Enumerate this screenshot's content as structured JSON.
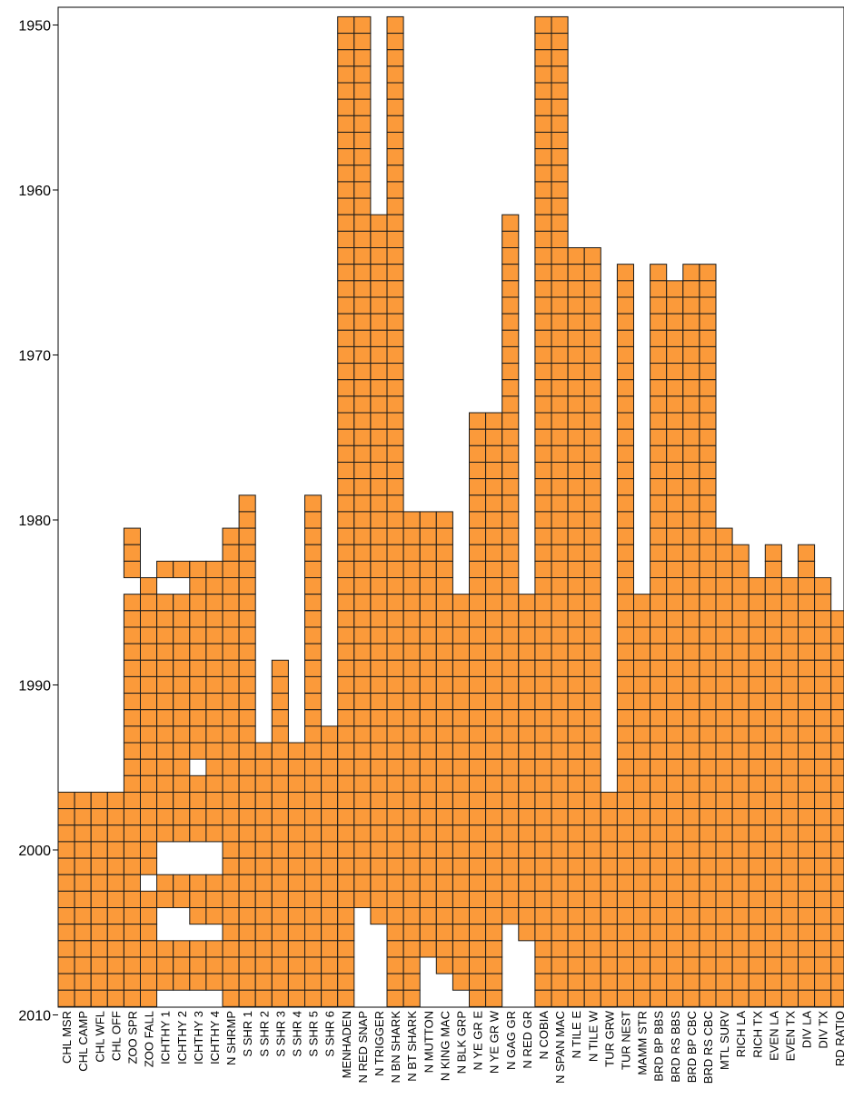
{
  "chart_data": {
    "type": "heatmap",
    "title": "",
    "xlabel": "",
    "ylabel": "",
    "y_axis": {
      "ticks": [
        1950,
        1960,
        1970,
        1980,
        1990,
        2000,
        2010
      ],
      "range": [
        1949,
        2012
      ],
      "direction": "top-to-bottom"
    },
    "grid": false,
    "legend": "none",
    "cell_color": "#fb9a3a",
    "cell_border_color": "#1a1a1a",
    "series": [
      {
        "name": "CHL MSR",
        "years": [
          [
            1997,
            2010
          ]
        ]
      },
      {
        "name": "CHL CAMP",
        "years": [
          [
            1997,
            2010
          ]
        ]
      },
      {
        "name": "CHL WFL",
        "years": [
          [
            1997,
            2010
          ]
        ]
      },
      {
        "name": "CHL OFF",
        "years": [
          [
            1997,
            2010
          ]
        ]
      },
      {
        "name": "ZOO SPR",
        "years": [
          [
            1981,
            1983
          ],
          [
            1985,
            2009
          ]
        ]
      },
      {
        "name": "ZOO FALL",
        "years": [
          [
            1984,
            2001
          ],
          [
            2003,
            2009
          ]
        ]
      },
      {
        "name": "ICHTHY 1",
        "years": [
          [
            1983,
            1983
          ],
          [
            1985,
            1999
          ],
          [
            2002,
            2003
          ],
          [
            2006,
            2008
          ]
        ]
      },
      {
        "name": "ICHTHY 2",
        "years": [
          [
            1983,
            1983
          ],
          [
            1985,
            1999
          ],
          [
            2002,
            2003
          ],
          [
            2006,
            2008
          ]
        ]
      },
      {
        "name": "ICHTHY 3",
        "years": [
          [
            1983,
            1994
          ],
          [
            1996,
            1999
          ],
          [
            2002,
            2004
          ],
          [
            2006,
            2008
          ]
        ]
      },
      {
        "name": "ICHTHY 4",
        "years": [
          [
            1983,
            1999
          ],
          [
            2002,
            2004
          ],
          [
            2006,
            2008
          ]
        ]
      },
      {
        "name": "N SHRMP",
        "years": [
          [
            1981,
            2011
          ]
        ]
      },
      {
        "name": "S SHR 1",
        "years": [
          [
            1979,
            2009
          ]
        ]
      },
      {
        "name": "S SHR 2",
        "years": [
          [
            1994,
            2009
          ]
        ]
      },
      {
        "name": "S SHR 3",
        "years": [
          [
            1989,
            2009
          ]
        ]
      },
      {
        "name": "S SHR 4",
        "years": [
          [
            1994,
            2009
          ]
        ]
      },
      {
        "name": "S SHR 5",
        "years": [
          [
            1979,
            2009
          ]
        ]
      },
      {
        "name": "S SHR 6",
        "years": [
          [
            1993,
            2009
          ]
        ]
      },
      {
        "name": "MENHADEN",
        "years": [
          [
            1950,
            2010
          ]
        ]
      },
      {
        "name": "N RED SNAP",
        "years": [
          [
            1950,
            2003
          ]
        ]
      },
      {
        "name": "N TRIGGER",
        "years": [
          [
            1962,
            2004
          ]
        ]
      },
      {
        "name": "N BN SHARK",
        "years": [
          [
            1950,
            2009
          ]
        ]
      },
      {
        "name": "N BT SHARK",
        "years": [
          [
            1980,
            2010
          ]
        ]
      },
      {
        "name": "N MUTTON",
        "years": [
          [
            1980,
            2006
          ]
        ]
      },
      {
        "name": "N KING MAC",
        "years": [
          [
            1980,
            2007
          ]
        ]
      },
      {
        "name": "N BLK GRP",
        "years": [
          [
            1985,
            2008
          ]
        ]
      },
      {
        "name": "N YE GR E",
        "years": [
          [
            1974,
            2009
          ]
        ]
      },
      {
        "name": "N YE GR W",
        "years": [
          [
            1974,
            2009
          ]
        ]
      },
      {
        "name": "N GAG GR",
        "years": [
          [
            1962,
            2004
          ]
        ]
      },
      {
        "name": "N RED GR",
        "years": [
          [
            1985,
            2005
          ]
        ]
      },
      {
        "name": "N COBIA",
        "years": [
          [
            1950,
            2009
          ]
        ]
      },
      {
        "name": "N SPAN MAC",
        "years": [
          [
            1950,
            2009
          ]
        ]
      },
      {
        "name": "N TILE E",
        "years": [
          [
            1964,
            2009
          ]
        ]
      },
      {
        "name": "N TILE W",
        "years": [
          [
            1964,
            2009
          ]
        ]
      },
      {
        "name": "TUR GRW",
        "years": [
          [
            1997,
            2009
          ]
        ]
      },
      {
        "name": "TUR NEST",
        "years": [
          [
            1965,
            2011
          ]
        ]
      },
      {
        "name": "MAMM STR",
        "years": [
          [
            1985,
            2011
          ]
        ]
      },
      {
        "name": "BRD BP BBS",
        "years": [
          [
            1965,
            2011
          ]
        ]
      },
      {
        "name": "BRD RS BBS",
        "years": [
          [
            1966,
            2011
          ]
        ]
      },
      {
        "name": "BRD BP CBC",
        "years": [
          [
            1965,
            2011
          ]
        ]
      },
      {
        "name": "BRD RS CBC",
        "years": [
          [
            1965,
            2011
          ]
        ]
      },
      {
        "name": "MTL SURV",
        "years": [
          [
            1981,
            2011
          ]
        ]
      },
      {
        "name": "RICH LA",
        "years": [
          [
            1982,
            2010
          ]
        ]
      },
      {
        "name": "RICH TX",
        "years": [
          [
            1984,
            2009
          ]
        ]
      },
      {
        "name": "EVEN LA",
        "years": [
          [
            1982,
            2010
          ]
        ]
      },
      {
        "name": "EVEN TX",
        "years": [
          [
            1984,
            2009
          ]
        ]
      },
      {
        "name": "DIV LA",
        "years": [
          [
            1982,
            2010
          ]
        ]
      },
      {
        "name": "DIV TX",
        "years": [
          [
            1984,
            2009
          ]
        ]
      },
      {
        "name": "RD RATIO",
        "years": [
          [
            1986,
            2011
          ]
        ]
      }
    ]
  }
}
